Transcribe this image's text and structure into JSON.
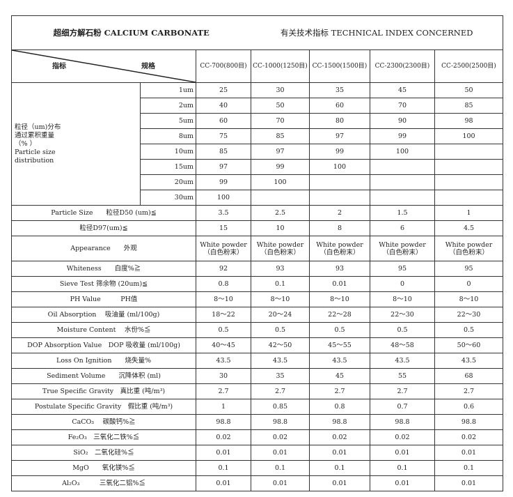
{
  "title_cn": "超细方解石粉 CALCIUM CARBONATE",
  "title_right": "有关技术指标 TECHNICAL INDEX CONCERNED",
  "header": {
    "index_label": "指标",
    "spec_label": "规格",
    "grades": [
      "CC-700(800目)",
      "CC-1000(1250目)",
      "CC-1500(1500目)",
      "CC-2300(2300目)",
      "CC-2500(2500目)"
    ]
  },
  "psd": {
    "label": [
      "粒径（um)分布",
      "通过累积重量",
      "（% ）",
      "Particle size",
      "distribution"
    ],
    "rows": [
      {
        "size": "1um",
        "values": [
          "25",
          "30",
          "35",
          "45",
          "50"
        ]
      },
      {
        "size": "2um",
        "values": [
          "40",
          "50",
          "60",
          "70",
          "85"
        ]
      },
      {
        "size": "5um",
        "values": [
          "60",
          "70",
          "80",
          "90",
          "98"
        ]
      },
      {
        "size": "8um",
        "values": [
          "75",
          "85",
          "97",
          "99",
          "100"
        ]
      },
      {
        "size": "10um",
        "values": [
          "85",
          "97",
          "99",
          "100",
          ""
        ]
      },
      {
        "size": "15um",
        "values": [
          "97",
          "99",
          "100",
          "",
          ""
        ]
      },
      {
        "size": "20um",
        "values": [
          "99",
          "100",
          "",
          "",
          ""
        ]
      },
      {
        "size": "30um",
        "values": [
          "100",
          "",
          "",
          "",
          ""
        ]
      }
    ]
  },
  "props": [
    {
      "label": "Particle Size　　粒径D50 (um)≦",
      "values": [
        "3.5",
        "2.5",
        "2",
        "1.5",
        "1"
      ]
    },
    {
      "label": "粒径D97(um)≦",
      "values": [
        "15",
        "10",
        "8",
        "6",
        "4.5"
      ]
    },
    {
      "label": "Appearance　　外观",
      "values": [
        "White powder\n（白色粉末）",
        "White powder\n（白色粉末）",
        "White powder\n（白色粉末）",
        "White powder\n（白色粉末）",
        "White powder\n（白色粉末）"
      ]
    },
    {
      "label": "Whiteness　　白度%≧",
      "values": [
        "92",
        "93",
        "93",
        "95",
        "95"
      ]
    },
    {
      "label": "Sieve Test 筛余物 (20um)≦",
      "values": [
        "0.8",
        "0.1",
        "0.01",
        "0",
        "0"
      ]
    },
    {
      "label": "PH Value　　　PH值",
      "values": [
        "8～10",
        "8～10",
        "8～10",
        "8～10",
        "8～10"
      ]
    },
    {
      "label": "Oil Absorption　 吸油量 (ml/100g)",
      "values": [
        "18～22",
        "20～24",
        "22～28",
        "22～30",
        "22～30"
      ]
    },
    {
      "label": "Moisture Content　 水份%≦",
      "values": [
        "0.5",
        "0.5",
        "0.5",
        "0.5",
        "0.5"
      ]
    },
    {
      "label": "DOP Absorption Value　DOP 吸收量 (ml/100g)",
      "values": [
        "40～45",
        "42～50",
        "45～55",
        "48～58",
        "50～60"
      ]
    },
    {
      "label": "Loss On Ignition　　烧失量%",
      "values": [
        "43.5",
        "43.5",
        "43.5",
        "43.5",
        "43.5"
      ]
    },
    {
      "label": "Sediment Volume　　沉降体积 (ml)",
      "values": [
        "30",
        "35",
        "45",
        "55",
        "68"
      ]
    },
    {
      "label": "True Specific Gravity　真比重 (吨/m³)",
      "values": [
        "2.7",
        "2.7",
        "2.7",
        "2.7",
        "2.7"
      ]
    },
    {
      "label": "Postulate Specific Gravity　假比重 (吨/m³)",
      "values": [
        "1",
        "0.85",
        "0.8",
        "0.7",
        "0.6"
      ]
    },
    {
      "label": "CaCO₃　 碳酸钙%≧",
      "values": [
        "98.8",
        "98.8",
        "98.8",
        "98.8",
        "98.8"
      ]
    },
    {
      "label": "Fe₂O₃　三氧化二铁%≦",
      "values": [
        "0.02",
        "0.02",
        "0.02",
        "0.02",
        "0.02"
      ]
    },
    {
      "label": "SiO₂　二氧化硅%≦",
      "values": [
        "0.01",
        "0.01",
        "0.01",
        "0.01",
        "0.01"
      ]
    },
    {
      "label": "MgO　　氧化镁%≦",
      "values": [
        "0.1",
        "0.1",
        "0.1",
        "0.1",
        "0.1"
      ]
    },
    {
      "label": "Al₂O₃　　　三氧化二铝%≦",
      "values": [
        "0.01",
        "0.01",
        "0.01",
        "0.01",
        "0.01"
      ]
    }
  ]
}
